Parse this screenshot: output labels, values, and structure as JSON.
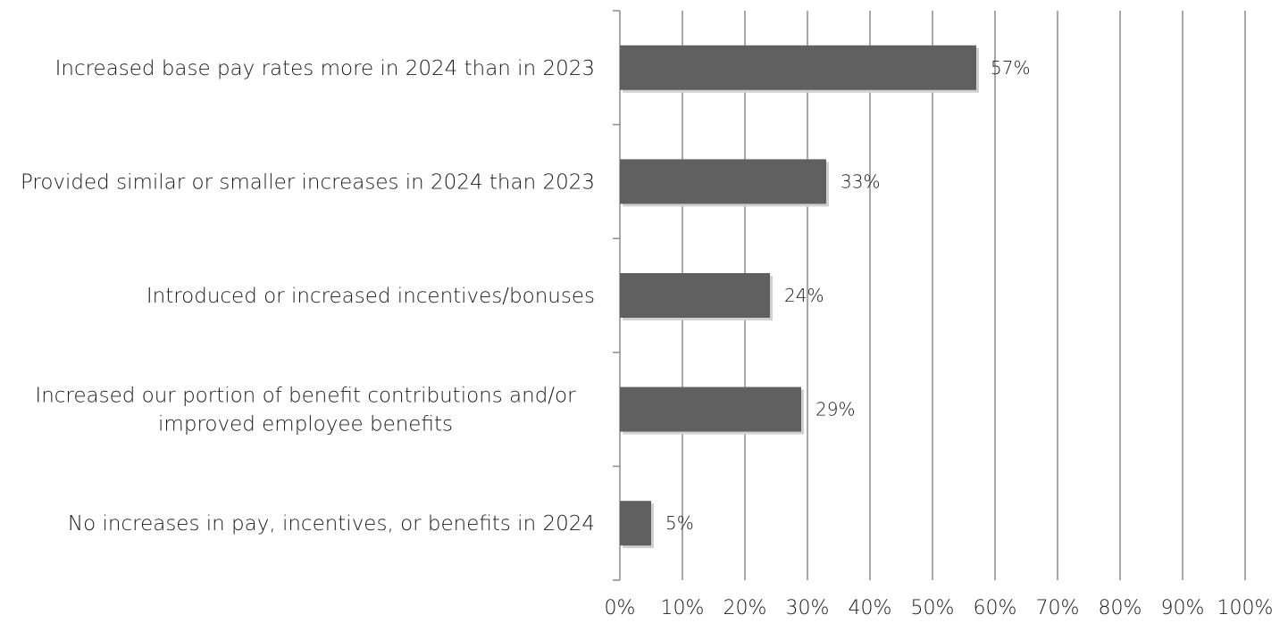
{
  "chart_data": {
    "type": "bar",
    "orientation": "horizontal",
    "categories": [
      [
        "Increased base pay rates more in 2024 than in 2023"
      ],
      [
        "Provided similar or smaller increases in 2024 than 2023"
      ],
      [
        "Introduced or increased incentives/bonuses"
      ],
      [
        "Increased our portion of benefit contributions and/or",
        "improved employee benefits"
      ],
      [
        "No increases in pay, incentives, or benefits in 2024"
      ]
    ],
    "values": [
      57,
      33,
      24,
      29,
      5
    ],
    "data_labels": [
      "57%",
      "33%",
      "24%",
      "29%",
      "5%"
    ],
    "xlim": [
      0,
      100
    ],
    "x_ticks": [
      0,
      10,
      20,
      30,
      40,
      50,
      60,
      70,
      80,
      90,
      100
    ],
    "x_tick_labels": [
      "0%",
      "10%",
      "20%",
      "30%",
      "40%",
      "50%",
      "60%",
      "70%",
      "80%",
      "90%",
      "100%"
    ],
    "grid": "vertical",
    "bar_color": "#606060",
    "grid_color": "#8c8c8c"
  }
}
